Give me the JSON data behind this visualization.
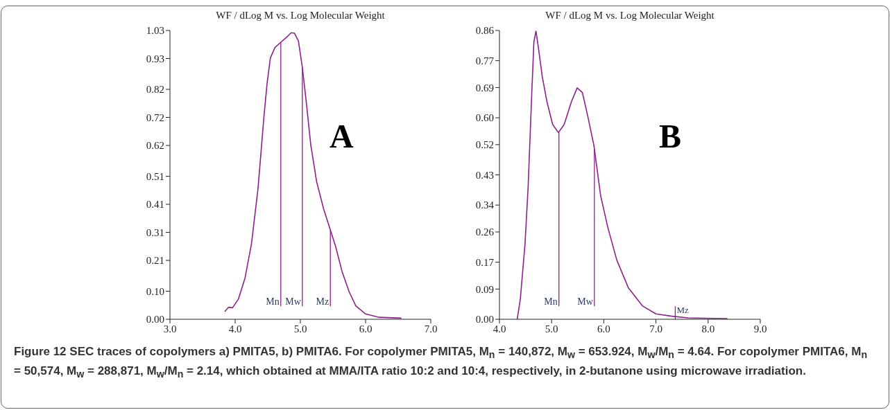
{
  "chart_data": [
    {
      "type": "line",
      "title": "WF / dLog M vs. Log Molecular Weight",
      "series": [
        {
          "color": "#8e1f8e",
          "x": [
            3.84,
            3.9,
            3.96,
            4.05,
            4.15,
            4.25,
            4.35,
            4.44,
            4.49,
            4.54,
            4.61,
            4.7,
            4.79,
            4.86,
            4.91,
            4.97,
            5.03,
            5.09,
            5.16,
            5.25,
            5.36,
            5.45,
            5.54,
            5.64,
            5.75,
            5.85,
            6.0,
            6.21,
            6.55
          ],
          "values": [
            0.027,
            0.043,
            0.041,
            0.072,
            0.146,
            0.269,
            0.465,
            0.719,
            0.842,
            0.932,
            0.969,
            0.988,
            1.006,
            1.022,
            1.02,
            0.993,
            0.899,
            0.776,
            0.621,
            0.49,
            0.391,
            0.326,
            0.26,
            0.17,
            0.097,
            0.048,
            0.019,
            0.007,
            0.004
          ]
        }
      ],
      "xlim": [
        3.0,
        7.0
      ],
      "xticks": [
        {
          "value": 3,
          "label": "3.0"
        },
        {
          "value": 4,
          "label": "4.0"
        },
        {
          "value": 5,
          "label": "5.0"
        },
        {
          "value": 6,
          "label": "6.0"
        },
        {
          "value": 7,
          "label": "7.0"
        }
      ],
      "ylim": [
        0,
        1.03
      ],
      "yticks": [
        {
          "value": 0,
          "label": "0.00"
        },
        {
          "value": 0.1,
          "label": "0.10"
        },
        0.21,
        0.31,
        0.41,
        0.51,
        0.62,
        0.72,
        0.82,
        0.93,
        1.03
      ],
      "ref_lines": [
        {
          "axis": "x",
          "value": 4.7,
          "label": "Mn",
          "color": "#8e1f8e"
        },
        {
          "axis": "x",
          "value": 5.03,
          "label": "Mw",
          "color": "#8e1f8e"
        },
        {
          "axis": "x",
          "value": 5.46,
          "label": "Mz",
          "color": "#8e1f8e"
        }
      ],
      "annotations": [
        "A",
        "Figure 12 SEC traces of copolymers a) PMITA5, b) PMITA6. For copolymer PMITA5, M$_{n}$ = 140,872, M$_{w}$ = 653.924, M$_{w}$/M$_{n}$ = 4.64. For copolymer PMITA6, M$_{n}$ = 50,574, M$_{w}$ = 288,871, M$_{w}$/M$_{n}$ = 2.14, which obtained at MMA/ITA ratio 10:2 and 10:4, respectively, in 2-butanone using microwave irradiation."
      ],
      "grid": false
    },
    {
      "type": "line",
      "title": "WF / dLog M vs. Log Molecular Weight",
      "series": [
        {
          "color": "#8e1f8e",
          "x": [
            4.34,
            4.4,
            4.49,
            4.55,
            4.62,
            4.66,
            4.7,
            4.75,
            4.82,
            4.91,
            5.02,
            5.13,
            5.24,
            5.38,
            5.49,
            5.59,
            5.7,
            5.81,
            5.94,
            6.08,
            6.25,
            6.47,
            6.74,
            7.0,
            7.31,
            7.62,
            8.37
          ],
          "values": [
            0,
            0.06,
            0.224,
            0.395,
            0.675,
            0.826,
            0.858,
            0.805,
            0.723,
            0.648,
            0.58,
            0.556,
            0.58,
            0.648,
            0.689,
            0.675,
            0.6,
            0.518,
            0.368,
            0.272,
            0.176,
            0.094,
            0.04,
            0.016,
            0.009,
            0.004,
            0.002
          ]
        }
      ],
      "xlim": [
        4.0,
        9.0
      ],
      "xticks": [
        {
          "value": 4,
          "label": "4.0"
        },
        {
          "value": 5,
          "label": "5.0"
        },
        {
          "value": 6,
          "label": "6.0"
        },
        {
          "value": 7,
          "label": "7.0"
        },
        {
          "value": 8,
          "label": "8.0"
        },
        {
          "value": 9,
          "label": "9.0"
        }
      ],
      "ylim": [
        0,
        0.86
      ],
      "yticks": [
        {
          "value": 0,
          "label": "0.00"
        },
        0.09,
        0.17,
        0.26,
        0.34,
        0.43,
        0.52,
        {
          "value": 0.6,
          "label": "0.60"
        },
        0.69,
        0.77,
        0.86
      ],
      "ref_lines": [
        {
          "axis": "x",
          "value": 5.14,
          "label": "Mn",
          "color": "#8e1f8e"
        },
        {
          "axis": "x",
          "value": 5.82,
          "label": "Mw",
          "color": "#8e1f8e"
        },
        {
          "axis": "x",
          "value": 7.37,
          "label": "Mz",
          "color": "#8e1f8e"
        }
      ],
      "annotations": [
        "B"
      ],
      "grid": false
    }
  ]
}
